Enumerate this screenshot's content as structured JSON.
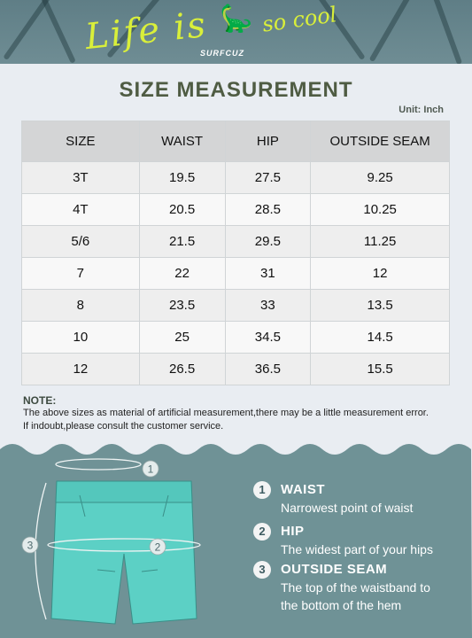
{
  "banner": {
    "script_text": "Life is",
    "script_text_2": "so cool",
    "brand": "SURFCUZ"
  },
  "title": "SIZE MEASUREMENT",
  "unit": "Unit: Inch",
  "table": {
    "headers": [
      "SIZE",
      "WAIST",
      "HIP",
      "OUTSIDE SEAM"
    ],
    "rows": [
      [
        "3T",
        "19.5",
        "27.5",
        "9.25"
      ],
      [
        "4T",
        "20.5",
        "28.5",
        "10.25"
      ],
      [
        "5/6",
        "21.5",
        "29.5",
        "11.25"
      ],
      [
        "7",
        "22",
        "31",
        "12"
      ],
      [
        "8",
        "23.5",
        "33",
        "13.5"
      ],
      [
        "10",
        "25",
        "34.5",
        "14.5"
      ],
      [
        "12",
        "26.5",
        "36.5",
        "15.5"
      ]
    ]
  },
  "note": {
    "title": "NOTE:",
    "line1": "The above sizes as material of artificial measurement,there may be a little measurement error.",
    "line2": "If indoubt,please consult the customer service."
  },
  "diagram": {
    "marker1": "1",
    "marker2": "2",
    "marker3": "3",
    "garment_color": "#5cd0c5"
  },
  "legend": [
    {
      "num": "1",
      "label": "WAIST",
      "desc": [
        "Narrowest point of waist"
      ]
    },
    {
      "num": "2",
      "label": "HIP",
      "desc": [
        "The widest part of your hips"
      ]
    },
    {
      "num": "3",
      "label": "OUTSIDE SEAM",
      "desc": [
        "The top of the waistband to",
        "the bottom of the hem"
      ]
    }
  ],
  "colors": {
    "bottom_bg": "#6f9296",
    "title": "#4f5c43",
    "accent": "#d9ef3a"
  }
}
